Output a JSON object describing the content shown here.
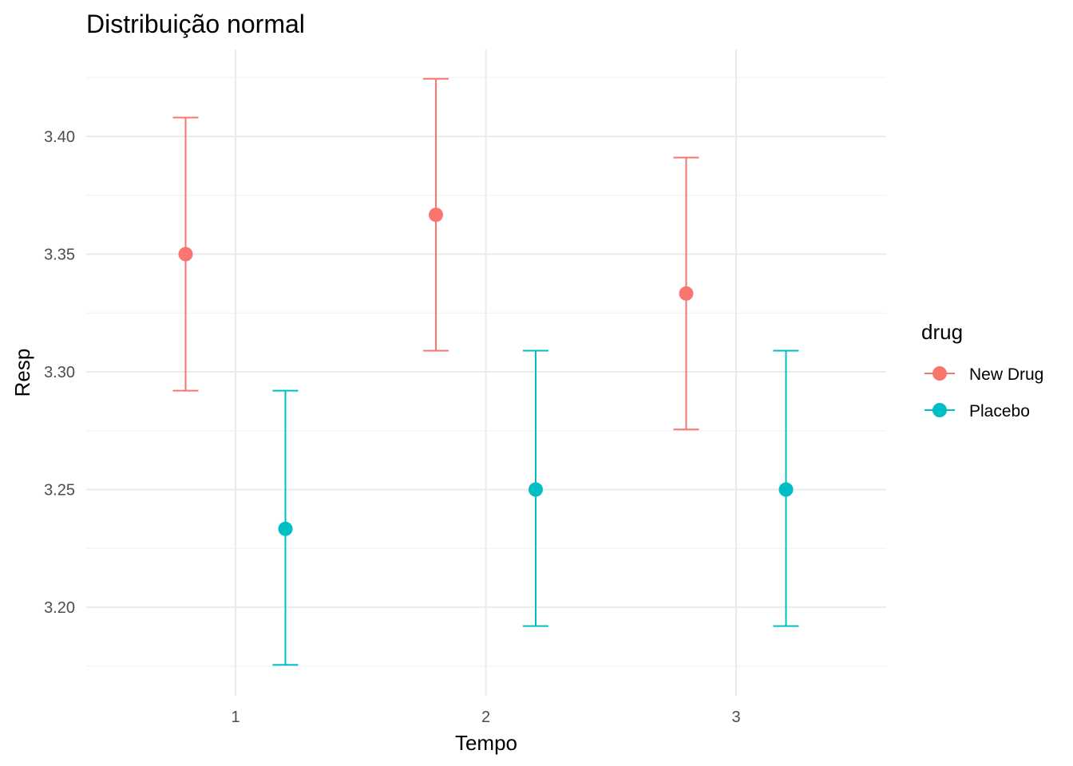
{
  "chart_data": {
    "type": "scatter",
    "title": "Distribuição normal",
    "xlabel": "Tempo",
    "ylabel": "Resp",
    "x_categories": [
      "1",
      "2",
      "3"
    ],
    "y_ticks": [
      "3.20",
      "3.25",
      "3.30",
      "3.35",
      "3.40"
    ],
    "y_tick_values": [
      3.2,
      3.25,
      3.3,
      3.35,
      3.4
    ],
    "ylim": [
      3.162,
      3.437
    ],
    "grid": true,
    "legend": {
      "title": "drug",
      "position": "right"
    },
    "series": [
      {
        "name": "New Drug",
        "color": "#F8766D",
        "points": [
          {
            "x": "1",
            "y": 3.35,
            "ymin": 3.292,
            "ymax": 3.408
          },
          {
            "x": "2",
            "y": 3.3667,
            "ymin": 3.309,
            "ymax": 3.4245
          },
          {
            "x": "3",
            "y": 3.3333,
            "ymin": 3.2755,
            "ymax": 3.391
          }
        ]
      },
      {
        "name": "Placebo",
        "color": "#00BFC4",
        "points": [
          {
            "x": "1",
            "y": 3.2333,
            "ymin": 3.1755,
            "ymax": 3.292
          },
          {
            "x": "2",
            "y": 3.25,
            "ymin": 3.192,
            "ymax": 3.309
          },
          {
            "x": "3",
            "y": 3.25,
            "ymin": 3.192,
            "ymax": 3.309
          }
        ]
      }
    ]
  }
}
